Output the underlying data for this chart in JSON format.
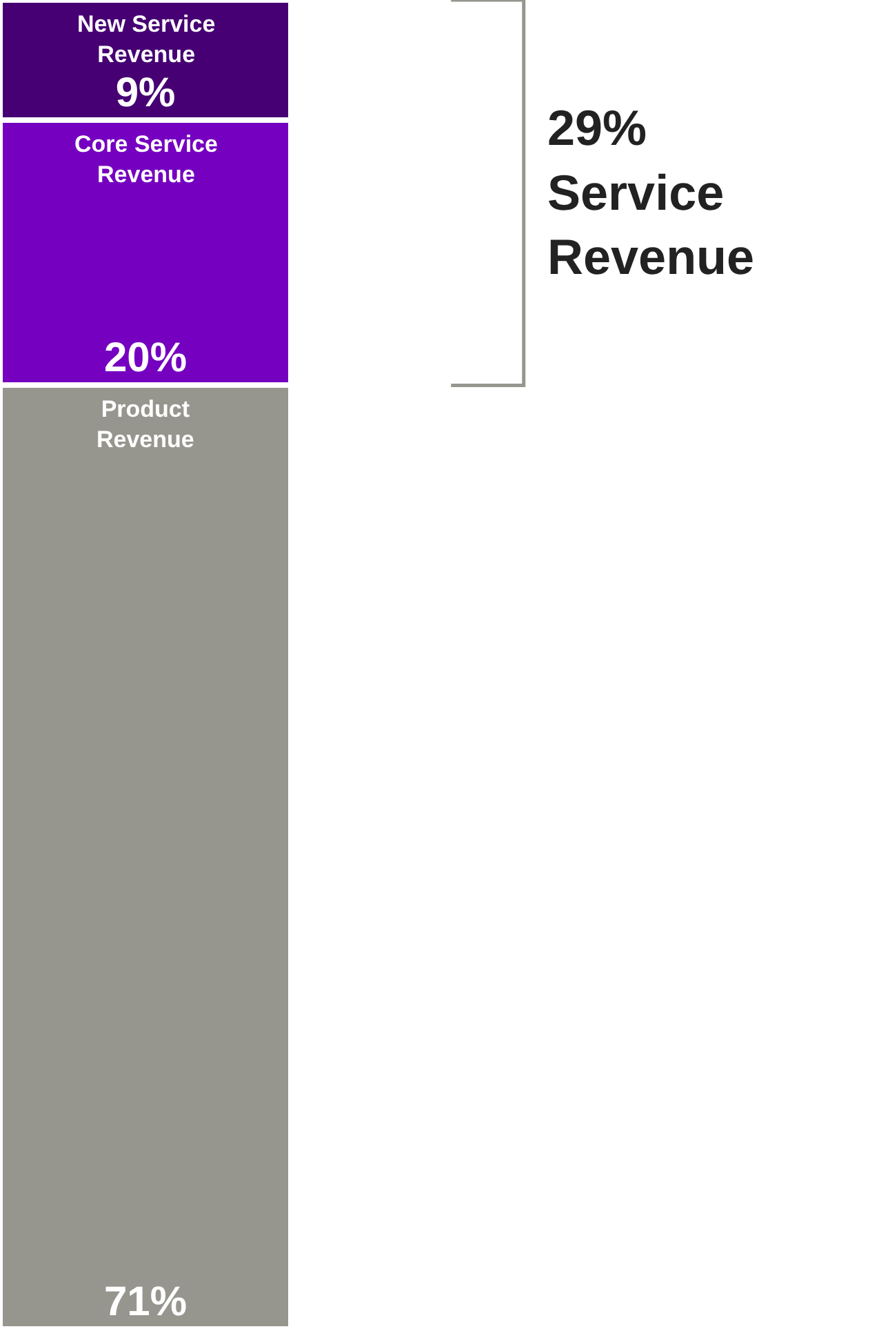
{
  "chart_data": {
    "type": "bar",
    "stacked": true,
    "categories": [
      null
    ],
    "series": [
      {
        "name": "Product Revenue",
        "color": "#97968e",
        "values": [
          71
        ],
        "value_labels": [
          "71%"
        ]
      },
      {
        "name": "Core Service Revenue",
        "color": "#7500c0",
        "values": [
          20
        ],
        "value_labels": [
          "20%"
        ]
      },
      {
        "name": "New Service Revenue",
        "color": "#460073",
        "values": [
          9
        ],
        "value_labels": [
          "9%"
        ]
      }
    ],
    "annotations": [
      "29%\nService Revenue"
    ]
  }
}
